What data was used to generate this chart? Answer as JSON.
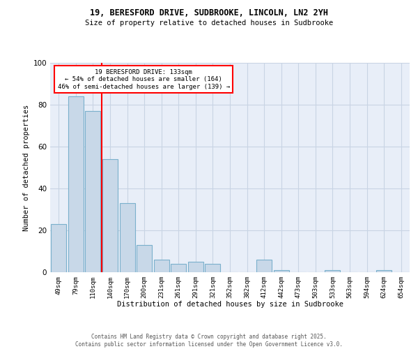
{
  "title1": "19, BERESFORD DRIVE, SUDBROOKE, LINCOLN, LN2 2YH",
  "title2": "Size of property relative to detached houses in Sudbrooke",
  "xlabel": "Distribution of detached houses by size in Sudbrooke",
  "ylabel": "Number of detached properties",
  "categories": [
    "49sqm",
    "79sqm",
    "110sqm",
    "140sqm",
    "170sqm",
    "200sqm",
    "231sqm",
    "261sqm",
    "291sqm",
    "321sqm",
    "352sqm",
    "382sqm",
    "412sqm",
    "442sqm",
    "473sqm",
    "503sqm",
    "533sqm",
    "563sqm",
    "594sqm",
    "624sqm",
    "654sqm"
  ],
  "values": [
    23,
    84,
    77,
    54,
    33,
    13,
    6,
    4,
    5,
    4,
    0,
    0,
    6,
    1,
    0,
    0,
    1,
    0,
    0,
    1,
    0
  ],
  "bar_color": "#c8d8e8",
  "bar_edge_color": "#7ab0cc",
  "annotation_text": "19 BERESFORD DRIVE: 133sqm\n← 54% of detached houses are smaller (164)\n46% of semi-detached houses are larger (139) →",
  "annotation_box_color": "white",
  "annotation_box_edge_color": "red",
  "red_line_color": "red",
  "grid_color": "#c8d4e4",
  "bg_color": "#e8eef8",
  "footer1": "Contains HM Land Registry data © Crown copyright and database right 2025.",
  "footer2": "Contains public sector information licensed under the Open Government Licence v3.0.",
  "ylim": [
    0,
    100
  ],
  "yticks": [
    0,
    20,
    40,
    60,
    80,
    100
  ]
}
